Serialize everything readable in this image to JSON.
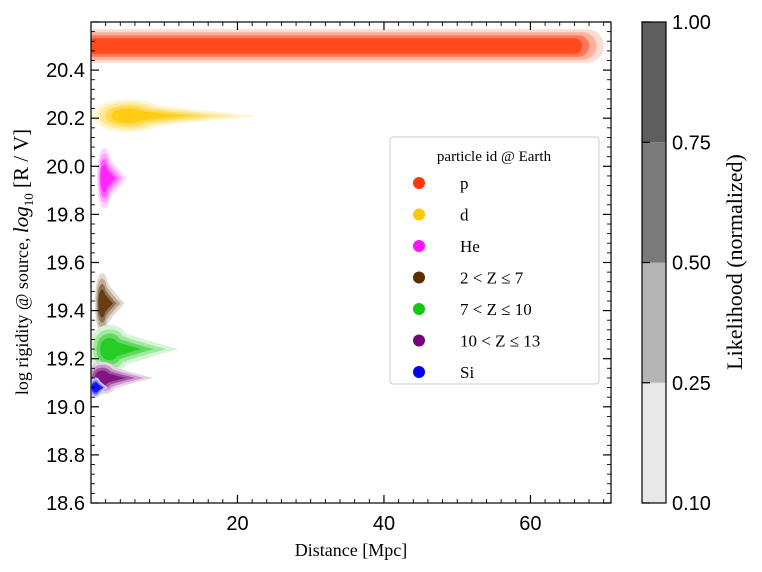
{
  "chart_data": {
    "type": "heatmap",
    "subtype": "kde-contour",
    "title": "",
    "xlabel": "Distance [Mpc]",
    "ylabel_prefix": "log rigidity @ source, ",
    "ylabel_math": "log",
    "ylabel_sub": "10",
    "ylabel_suffix": " [R / V]",
    "xlim": [
      0,
      71
    ],
    "ylim": [
      18.6,
      20.6
    ],
    "x_ticks": [
      20,
      40,
      60
    ],
    "x_tick_labels": [
      "20",
      "40",
      "60"
    ],
    "y_ticks": [
      18.6,
      18.8,
      19.0,
      19.2,
      19.4,
      19.6,
      19.8,
      20.0,
      20.2,
      20.4
    ],
    "y_tick_labels": [
      "18.6",
      "18.8",
      "19.0",
      "19.2",
      "19.4",
      "19.6",
      "19.8",
      "20.0",
      "20.2",
      "20.4"
    ],
    "levels": [
      0.1,
      0.25,
      0.5,
      0.75,
      1.0
    ],
    "colorbar": {
      "label": "Likelihood (normalized)",
      "ticks": [
        0.1,
        0.25,
        0.5,
        0.75,
        1.0
      ],
      "tick_labels": [
        "0.10",
        "0.25",
        "0.50",
        "0.75",
        "1.00"
      ],
      "colors": [
        "#e8e8e8",
        "#b4b4b4",
        "#7a7a7a",
        "#5e5e5e",
        "#252525"
      ]
    },
    "legend": {
      "title": "particle id @ Earth",
      "location": "center-right",
      "entries": [
        {
          "label": "p",
          "color": "#ff3a0a"
        },
        {
          "label": "d",
          "color": "#ffc800"
        },
        {
          "label": "He",
          "color": "#ff14ff"
        },
        {
          "label": "2 < Z ≤ 7",
          "color": "#5a2d00"
        },
        {
          "label": "7 < Z ≤ 10",
          "color": "#14c814"
        },
        {
          "label": "10 < Z ≤ 13",
          "color": "#780078"
        },
        {
          "label": "Si",
          "color": "#0000ff"
        }
      ]
    },
    "series": [
      {
        "name": "p",
        "color": "#ff3a0a",
        "base": "#ffffff",
        "shape": "bar",
        "x_range": [
          0,
          70
        ],
        "y_center": 20.5,
        "y_halfwidth": 0.07
      },
      {
        "name": "d",
        "color": "#ffc800",
        "base": "#ffffff",
        "shape": "blob",
        "x_center": 5,
        "x_halfwidth": 8,
        "x_skew": 10,
        "y_center": 20.21,
        "y_halfwidth": 0.08
      },
      {
        "name": "He",
        "color": "#ff14ff",
        "base": "#ffffff",
        "shape": "blob",
        "x_center": 1.8,
        "x_halfwidth": 1.6,
        "x_skew": 1.5,
        "y_center": 19.95,
        "y_halfwidth": 0.15
      },
      {
        "name": "2 < Z ≤ 7",
        "color": "#5a2d00",
        "base": "#ffffff",
        "shape": "blob",
        "x_center": 1.5,
        "x_halfwidth": 1.6,
        "x_skew": 1.5,
        "y_center": 19.43,
        "y_halfwidth": 0.15
      },
      {
        "name": "7 < Z ≤ 10",
        "color": "#14c814",
        "base": "#ffffff",
        "shape": "blob",
        "x_center": 2.5,
        "x_halfwidth": 4.5,
        "x_skew": 5,
        "y_center": 19.24,
        "y_halfwidth": 0.12
      },
      {
        "name": "10 < Z ≤ 13",
        "color": "#780078",
        "base": "#ffffff",
        "shape": "blob",
        "x_center": 1.5,
        "x_halfwidth": 3.5,
        "x_skew": 3.5,
        "y_center": 19.12,
        "y_halfwidth": 0.08
      },
      {
        "name": "Si",
        "color": "#0000ff",
        "base": "#ffffff",
        "shape": "blob",
        "x_center": 0.6,
        "x_halfwidth": 1.2,
        "x_skew": 0.5,
        "y_center": 19.08,
        "y_halfwidth": 0.05
      }
    ]
  }
}
